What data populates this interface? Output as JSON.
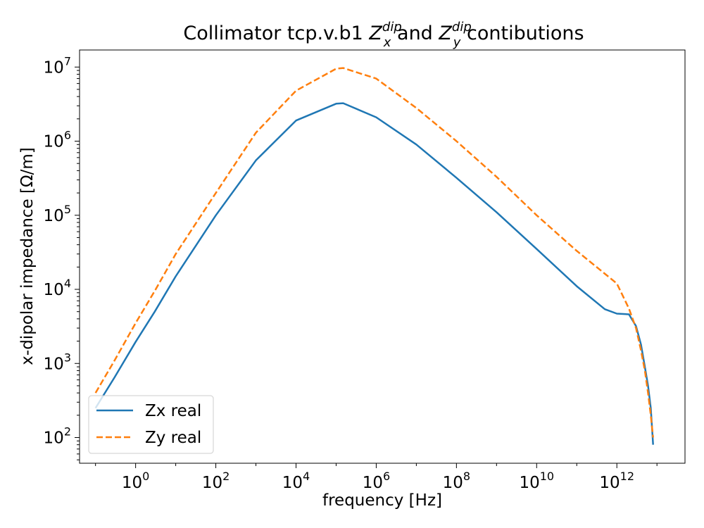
{
  "chart_data": {
    "type": "line",
    "title": {
      "prefix": "Collimator tcp.v.b1 ",
      "sym1": "Z",
      "sub1": "x",
      "sup1": "dip",
      "middle": " and ",
      "sym2": "Z",
      "sub2": "y",
      "sup2": "dip",
      "suffix": " contibutions"
    },
    "xlabel": "frequency [Hz]",
    "ylabel": "x-dipolar impedance [Ω/m]",
    "xscale": "log",
    "yscale": "log",
    "xlim": [
      0.04,
      50000000000000.0
    ],
    "ylim": [
      45,
      17000000
    ],
    "xticks": [
      {
        "base": "10",
        "exp": "0",
        "value": 1
      },
      {
        "base": "10",
        "exp": "2",
        "value": 100
      },
      {
        "base": "10",
        "exp": "4",
        "value": 10000
      },
      {
        "base": "10",
        "exp": "6",
        "value": 1000000
      },
      {
        "base": "10",
        "exp": "8",
        "value": 100000000
      },
      {
        "base": "10",
        "exp": "10",
        "value": 10000000000
      },
      {
        "base": "10",
        "exp": "12",
        "value": 1000000000000
      }
    ],
    "yticks": [
      {
        "base": "10",
        "exp": "2",
        "value": 100
      },
      {
        "base": "10",
        "exp": "3",
        "value": 1000
      },
      {
        "base": "10",
        "exp": "4",
        "value": 10000
      },
      {
        "base": "10",
        "exp": "5",
        "value": 100000
      },
      {
        "base": "10",
        "exp": "6",
        "value": 1000000
      },
      {
        "base": "10",
        "exp": "7",
        "value": 10000000
      }
    ],
    "legend": {
      "placement": "lower-left"
    },
    "grid": false,
    "series": [
      {
        "name": "Zx real",
        "color": "#1f77b4",
        "dash": "solid",
        "x": [
          0.1,
          0.3,
          1,
          3,
          10,
          100,
          1000,
          10000,
          100000,
          150000,
          1000000,
          10000000,
          100000000,
          1000000000,
          10000000000,
          100000000000,
          500000000000,
          1000000000000,
          2000000000000,
          3000000000000,
          4000000000000,
          5000000000000,
          6000000000000,
          7000000000000,
          8000000000000
        ],
        "y": [
          250,
          650,
          1950,
          5000,
          15000,
          100000,
          550000,
          1900000,
          3200000,
          3250000,
          2100000,
          900000,
          320000,
          110000,
          35000,
          11000,
          5400,
          4700,
          4600,
          3200,
          1800,
          900,
          500,
          250,
          80
        ]
      },
      {
        "name": "Zy real",
        "color": "#ff7f0e",
        "dash": "dashed",
        "x": [
          0.1,
          0.3,
          1,
          3,
          10,
          100,
          1000,
          10000,
          100000,
          150000,
          1000000,
          10000000,
          100000000,
          1000000000,
          10000000000,
          100000000000,
          1000000000000,
          2000000000000,
          3000000000000,
          4000000000000,
          5000000000000,
          6000000000000,
          7000000000000,
          8000000000000
        ],
        "y": [
          400,
          1100,
          3500,
          9500,
          30000,
          200000,
          1300000,
          4800000,
          9500000,
          9700000,
          7000000,
          2800000,
          1000000,
          330000,
          100000,
          33000,
          12000,
          5500,
          3000,
          1500,
          800,
          400,
          200,
          100
        ]
      }
    ]
  }
}
